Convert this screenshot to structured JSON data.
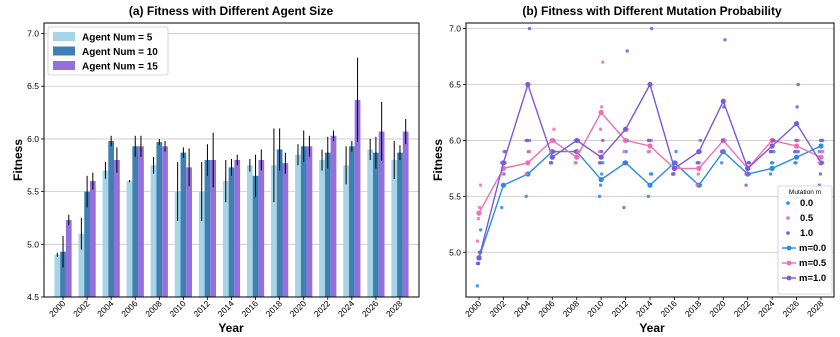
{
  "chart_data": [
    {
      "type": "bar",
      "title": "(a) Fitness with Different Agent Size",
      "xlabel": "Year",
      "ylabel": "Fitness",
      "ylim": [
        4.5,
        7.1
      ],
      "yticks": [
        "4.5",
        "5.0",
        "5.5",
        "6.0",
        "6.5",
        "7.0"
      ],
      "grid": "horizontal",
      "legend_position": "top-left",
      "categories": [
        "2000",
        "2002",
        "2004",
        "2006",
        "2008",
        "2010",
        "2012",
        "2014",
        "2016",
        "2018",
        "2020",
        "2022",
        "2024",
        "2026",
        "2028"
      ],
      "series": [
        {
          "name": "Agent Num = 5",
          "color": "#a6d5e8",
          "values": [
            4.9,
            5.1,
            5.7,
            5.6,
            5.75,
            5.5,
            5.5,
            5.6,
            5.75,
            5.75,
            5.85,
            5.8,
            5.75,
            5.9,
            5.8
          ],
          "errors": [
            0.02,
            0.15,
            0.08,
            0.01,
            0.08,
            0.28,
            0.28,
            0.2,
            0.06,
            0.35,
            0.1,
            0.1,
            0.18,
            0.1,
            0.18
          ]
        },
        {
          "name": "Agent Num = 10",
          "color": "#3f7fb4",
          "values": [
            4.93,
            5.5,
            5.98,
            5.93,
            5.97,
            5.87,
            5.8,
            5.73,
            5.65,
            5.9,
            5.93,
            5.87,
            5.93,
            5.87,
            5.87
          ],
          "errors": [
            0.15,
            0.15,
            0.05,
            0.1,
            0.03,
            0.05,
            0.15,
            0.08,
            0.2,
            0.2,
            0.15,
            0.15,
            0.05,
            0.15,
            0.07
          ]
        },
        {
          "name": "Agent Num = 15",
          "color": "#9470dd",
          "values": [
            5.23,
            5.6,
            5.8,
            5.93,
            5.93,
            5.73,
            5.8,
            5.8,
            5.8,
            5.77,
            5.93,
            6.03,
            6.37,
            6.07,
            6.07
          ],
          "errors": [
            0.05,
            0.08,
            0.12,
            0.1,
            0.05,
            0.18,
            0.26,
            0.05,
            0.1,
            0.1,
            0.1,
            0.05,
            0.4,
            0.28,
            0.12
          ]
        }
      ]
    },
    {
      "type": "scatter",
      "title": "(b) Fitness with Different Mutation Probability",
      "xlabel": "Year",
      "ylabel": "Fitness",
      "ylim": [
        4.6,
        7.05
      ],
      "yticks": [
        "5.0",
        "5.5",
        "6.0",
        "6.5",
        "7.0"
      ],
      "grid": "horizontal",
      "legend_title": "Mutation m",
      "legend_position": "lower-right",
      "categories": [
        "2000",
        "2002",
        "2004",
        "2006",
        "2008",
        "2010",
        "2012",
        "2014",
        "2016",
        "2018",
        "2020",
        "2022",
        "2024",
        "2026",
        "2028"
      ],
      "series": [
        {
          "name": "m=0.0",
          "dot_name": "0.0",
          "color": "#2b8be6",
          "values": [
            4.95,
            5.6,
            5.7,
            5.9,
            5.9,
            5.65,
            5.8,
            5.6,
            5.8,
            5.6,
            5.9,
            5.7,
            5.75,
            5.85,
            5.95
          ],
          "points": [
            [
              4.7,
              4.9,
              5.0,
              5.2
            ],
            [
              5.4,
              5.6,
              5.7,
              5.8
            ],
            [
              5.5,
              5.7,
              5.9,
              6.0
            ],
            [
              5.8,
              5.9,
              5.9,
              6.0
            ],
            [
              5.9,
              5.9,
              6.0,
              6.0
            ],
            [
              5.5,
              5.6,
              5.7,
              5.8
            ],
            [
              5.8,
              5.8,
              5.9,
              6.0
            ],
            [
              5.5,
              5.6,
              5.7,
              5.7
            ],
            [
              5.7,
              5.8,
              5.8,
              5.9
            ],
            [
              5.6,
              5.6,
              5.6,
              5.6
            ],
            [
              5.8,
              5.9,
              6.0,
              6.0
            ],
            [
              5.7,
              5.7,
              5.7,
              5.7
            ],
            [
              5.7,
              5.8,
              5.8,
              5.9
            ],
            [
              5.8,
              5.8,
              5.9,
              5.9
            ],
            [
              5.9,
              6.0,
              6.0,
              5.8
            ]
          ]
        },
        {
          "name": "m=0.5",
          "dot_name": "0.5",
          "color": "#ee6fb4",
          "values": [
            5.35,
            5.75,
            5.8,
            6.0,
            5.85,
            6.25,
            6.0,
            5.95,
            5.75,
            5.75,
            6.0,
            5.75,
            6.0,
            5.95,
            5.85
          ],
          "points": [
            [
              5.1,
              5.3,
              5.4,
              5.6
            ],
            [
              5.7,
              5.8,
              5.9,
              5.9
            ],
            [
              5.7,
              5.8,
              5.8,
              5.9
            ],
            [
              5.9,
              6.0,
              6.0,
              6.1
            ],
            [
              5.8,
              5.8,
              5.9,
              5.9
            ],
            [
              5.9,
              6.1,
              6.3,
              6.7
            ],
            [
              5.9,
              6.0,
              6.0,
              6.1
            ],
            [
              5.9,
              5.9,
              6.0,
              6.0
            ],
            [
              5.7,
              5.7,
              5.8,
              5.8
            ],
            [
              5.6,
              5.7,
              5.8,
              5.9
            ],
            [
              5.9,
              6.0,
              6.0,
              6.0
            ],
            [
              5.7,
              5.7,
              5.8,
              5.8
            ],
            [
              5.9,
              6.0,
              6.0,
              6.0
            ],
            [
              5.9,
              5.9,
              6.0,
              6.0
            ],
            [
              5.8,
              5.8,
              5.9,
              5.9
            ]
          ]
        },
        {
          "name": "m=1.0",
          "dot_name": "1.0",
          "color": "#7a5ad9",
          "values": [
            4.95,
            5.8,
            6.5,
            5.85,
            6.0,
            5.85,
            6.1,
            6.5,
            5.75,
            5.9,
            6.35,
            5.75,
            5.95,
            6.15,
            5.8
          ],
          "points": [
            [
              4.9,
              4.9,
              5.0,
              5.0
            ],
            [
              5.8,
              5.8,
              5.8,
              5.9
            ],
            [
              6.0,
              6.0,
              6.5,
              7.0
            ],
            [
              5.8,
              5.8,
              5.9,
              5.9
            ],
            [
              5.9,
              6.0,
              6.0,
              6.0
            ],
            [
              5.8,
              5.8,
              5.9,
              6.0
            ],
            [
              5.4,
              5.8,
              6.1,
              6.8
            ],
            [
              6.0,
              6.0,
              6.5,
              7.0
            ],
            [
              5.7,
              5.7,
              5.8,
              5.8
            ],
            [
              5.8,
              5.8,
              5.9,
              6.0
            ],
            [
              5.9,
              6.0,
              6.3,
              6.9
            ],
            [
              5.6,
              5.7,
              5.8,
              5.8
            ],
            [
              5.9,
              5.9,
              6.0,
              6.0
            ],
            [
              5.9,
              6.0,
              6.3,
              6.5
            ],
            [
              5.6,
              5.7,
              5.8,
              6.0
            ]
          ]
        }
      ]
    }
  ]
}
